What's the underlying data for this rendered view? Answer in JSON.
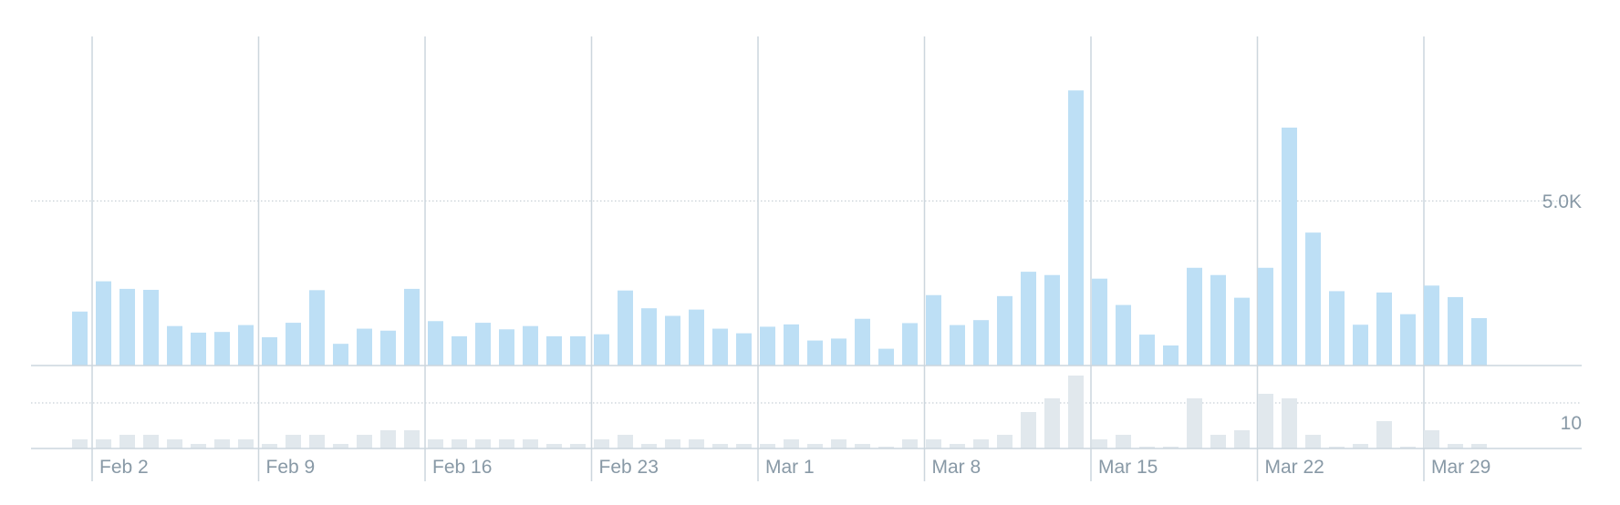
{
  "chart_data": {
    "type": "bar",
    "series": [
      {
        "values": [
          1640,
          2560,
          2330,
          2300,
          1200,
          1000,
          1020,
          1230,
          860,
          1300,
          2290,
          660,
          1120,
          1060,
          2330,
          1350,
          890,
          1300,
          1100,
          1200,
          890,
          890,
          950,
          2280,
          1740,
          1510,
          1700,
          1120,
          980,
          1180,
          1250,
          760,
          820,
          1420,
          510,
          1290,
          2140,
          1230,
          1380,
          2110,
          2850,
          2750,
          8360,
          2640,
          1840,
          940,
          610,
          2970,
          2750,
          2060,
          2970,
          7230,
          4040,
          2260,
          1240,
          2220,
          1560,
          2430,
          2080,
          1440
        ]
      },
      {
        "values": [
          2,
          2,
          3,
          3,
          2,
          1,
          2,
          2,
          1,
          3,
          3,
          1,
          3,
          4,
          4,
          2,
          2,
          2,
          2,
          2,
          1,
          1,
          2,
          3,
          1,
          2,
          2,
          1,
          1,
          1,
          2,
          1,
          2,
          1,
          0.4,
          2,
          2,
          1,
          2,
          3,
          8,
          11,
          16,
          2,
          3,
          0.4,
          0.4,
          11,
          3,
          4,
          12,
          11,
          3,
          0.4,
          1,
          6,
          0.4,
          4,
          1,
          1
        ]
      }
    ],
    "x_ticks": [
      "Feb 2",
      "Feb 9",
      "Feb 16",
      "Feb 23",
      "Mar 1",
      "Mar 8",
      "Mar 15",
      "Mar 22",
      "Mar 29"
    ],
    "y_labels": {
      "top": "5.0K",
      "bottom": "10"
    },
    "ylim_top": [
      0,
      10000
    ],
    "ylim_bottom": [
      0,
      20
    ],
    "grid": true,
    "colors": {
      "top_bars": "#bddff5",
      "bottom_bars": "#e1e8ed",
      "axis": "#ccd6dd",
      "text": "#8899a6"
    }
  }
}
